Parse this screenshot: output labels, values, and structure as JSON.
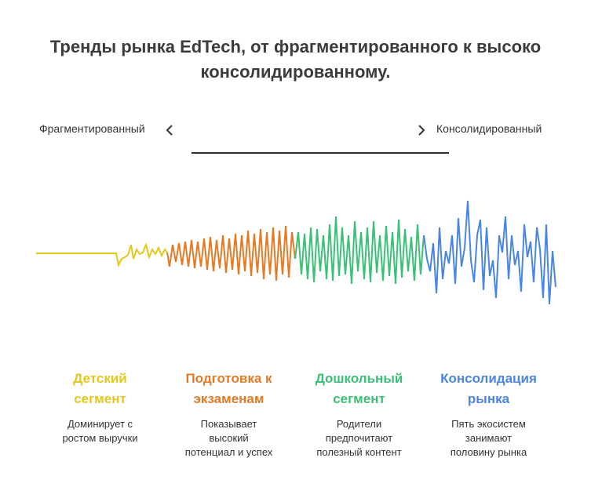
{
  "title_line1": "Тренды рынка EdTech, от фрагментированного к высоко",
  "title_line2": "консолидированному.",
  "scale": {
    "left_label": "Фрагментированный",
    "right_label": "Консолидированный"
  },
  "segments": [
    {
      "title_line1": "Детский",
      "title_line2": "сегмент",
      "desc_line1": "Доминирует с",
      "desc_line2": "ростом выручки",
      "desc_line3": "",
      "color": "#e3c81c"
    },
    {
      "title_line1": "Подготовка к",
      "title_line2": "экзаменам",
      "desc_line1": "Показывает",
      "desc_line2": "высокий",
      "desc_line3": "потенциал и успех",
      "color": "#e37a26"
    },
    {
      "title_line1": "Дошкольный",
      "title_line2": "сегмент",
      "desc_line1": "Родители",
      "desc_line2": "предпочитают",
      "desc_line3": "полезный контент",
      "color": "#3cbf76"
    },
    {
      "title_line1": "Консолидация",
      "title_line2": "рынка",
      "desc_line1": "Пять экосистем",
      "desc_line2": "занимают",
      "desc_line3": "половину рынка",
      "color": "#4a86e0"
    }
  ],
  "icons": {
    "left": "chevron-left-icon",
    "right": "chevron-right-icon"
  }
}
